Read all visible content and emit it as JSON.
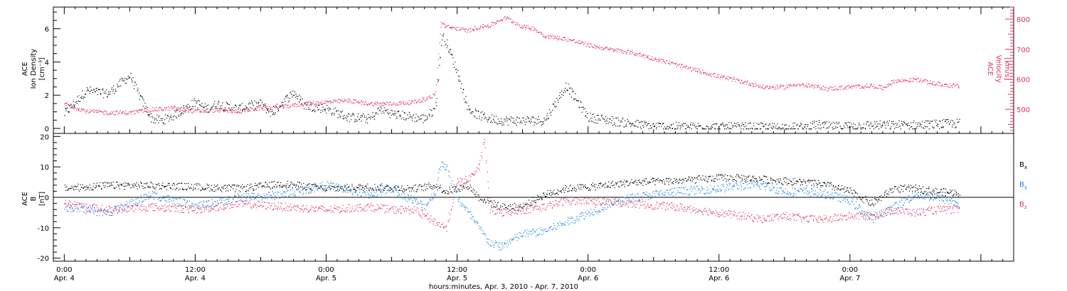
{
  "colors": {
    "density": "#000000",
    "velocity": "#e0325a",
    "bx": "#000000",
    "by": "#1a7fe0",
    "bz": "#e0325a"
  },
  "chart_data": [
    {
      "type": "scatter",
      "ylabel_lines": [
        "ACE",
        "Ion Density",
        "[cm⁻³]"
      ],
      "ylim": [
        -0.3,
        7.3
      ],
      "yticks": [
        0,
        2,
        4,
        6
      ],
      "y2label_lines": [
        "ACE",
        "Velocity",
        "[km/s]"
      ],
      "y2lim": [
        420,
        840
      ],
      "y2ticks": [
        500,
        600,
        700,
        800
      ],
      "xlim_hours": [
        -1,
        87
      ],
      "series": [
        {
          "key": "density",
          "axis": "left",
          "x_hours": [
            0,
            2,
            4,
            6,
            7,
            8,
            9,
            10,
            11,
            12,
            13,
            14,
            15,
            16,
            17,
            18,
            19,
            20,
            21,
            22,
            23,
            24,
            26,
            28,
            29,
            30,
            31,
            32,
            33,
            34,
            34.6,
            35,
            36,
            37,
            38,
            39,
            40,
            42,
            44,
            46,
            48,
            50,
            52,
            54,
            56,
            58,
            60,
            62,
            64,
            66,
            68,
            69,
            70,
            72,
            74,
            76,
            78,
            80,
            82
          ],
          "values": [
            0.9,
            2.3,
            2.1,
            3.2,
            1.8,
            0.6,
            0.5,
            0.8,
            1.2,
            1.6,
            1.2,
            1.5,
            1.3,
            1.2,
            1.4,
            1.5,
            0.9,
            1.6,
            2.2,
            1.4,
            1.3,
            1.2,
            0.7,
            0.6,
            1.2,
            0.9,
            0.8,
            0.7,
            0.6,
            1.2,
            5.6,
            5.2,
            3.4,
            1.2,
            0.8,
            0.6,
            0.5,
            0.5,
            0.5,
            2.6,
            0.7,
            0.5,
            0.3,
            0.15,
            0.12,
            0.12,
            0.1,
            0.1,
            0.08,
            0.08,
            0.08,
            0.25,
            0.12,
            0.18,
            0.22,
            0.22,
            0.22,
            0.28,
            0.32
          ]
        },
        {
          "key": "velocity",
          "axis": "right",
          "x_hours": [
            0,
            2,
            4,
            6,
            8,
            10,
            12,
            14,
            16,
            18,
            20,
            22,
            24,
            26,
            28,
            30,
            32,
            33,
            34,
            34.5,
            35,
            36,
            37,
            38,
            39,
            40,
            40.5,
            41,
            42,
            43,
            44,
            46,
            48,
            50,
            52,
            54,
            56,
            58,
            60,
            62,
            64,
            66,
            67,
            68,
            70,
            72,
            74,
            75,
            76,
            78,
            80,
            82
          ],
          "values": [
            520,
            495,
            490,
            490,
            500,
            505,
            495,
            498,
            495,
            505,
            510,
            520,
            525,
            530,
            520,
            520,
            525,
            535,
            550,
            790,
            775,
            770,
            762,
            775,
            780,
            800,
            805,
            795,
            775,
            770,
            745,
            735,
            715,
            700,
            690,
            670,
            650,
            630,
            610,
            595,
            575,
            575,
            585,
            580,
            570,
            575,
            580,
            572,
            595,
            600,
            585,
            578
          ]
        }
      ]
    },
    {
      "type": "scatter",
      "ylabel_lines": [
        "ACE",
        "B",
        "[nT]"
      ],
      "ylim": [
        -21,
        21
      ],
      "yticks": [
        -20,
        -10,
        0,
        10,
        20
      ],
      "xlim_hours": [
        -1,
        87
      ],
      "series": [
        {
          "key": "bx",
          "name": "Bx",
          "x_hours": [
            0,
            4,
            8,
            12,
            16,
            20,
            24,
            28,
            32,
            34,
            35,
            36,
            37,
            38,
            40,
            42,
            44,
            46,
            48,
            52,
            56,
            60,
            62,
            64,
            66,
            68,
            70,
            72,
            74,
            76,
            78,
            80,
            82
          ],
          "values": [
            3,
            4,
            4,
            3.5,
            3,
            4.5,
            3,
            3.5,
            3,
            4,
            2,
            3,
            4,
            0,
            -3,
            -3,
            1,
            3,
            3.5,
            5,
            5.5,
            6.5,
            6.5,
            6,
            5.5,
            5,
            4,
            2,
            -2,
            3,
            3,
            2,
            1.5
          ]
        },
        {
          "key": "by",
          "name": "By",
          "x_hours": [
            0,
            4,
            8,
            12,
            16,
            20,
            24,
            28,
            30,
            32,
            33,
            34,
            34.5,
            35,
            36,
            37,
            38,
            39,
            40,
            42,
            44,
            46,
            48,
            50,
            52,
            56,
            60,
            62,
            64,
            66,
            68,
            70,
            72,
            74,
            76,
            78,
            80,
            82
          ],
          "values": [
            -3,
            -5,
            1,
            -3,
            0,
            1,
            4,
            1,
            3,
            -1,
            -3,
            2,
            12,
            10,
            0,
            -5,
            -10,
            -15,
            -16,
            -12,
            -11,
            -8,
            -5,
            -2,
            0,
            2,
            3,
            4,
            4,
            2,
            2,
            1,
            -1,
            -7,
            -3,
            1,
            0,
            -2
          ]
        },
        {
          "key": "bz",
          "name": "Bz",
          "x_hours": [
            0,
            4,
            8,
            12,
            16,
            20,
            24,
            28,
            30,
            32,
            33,
            34,
            35,
            36,
            37,
            38,
            38.5,
            39,
            40,
            42,
            44,
            46,
            48,
            52,
            56,
            60,
            62,
            64,
            66,
            68,
            70,
            72,
            74,
            76,
            78,
            80,
            82
          ],
          "values": [
            -2,
            -4,
            -3,
            -4,
            -2,
            -3,
            -4,
            -3,
            -4,
            -4,
            -6,
            -8,
            -10,
            5,
            6,
            10,
            19,
            -4,
            -5,
            -4,
            -3,
            -1,
            -1,
            -2,
            -3,
            -5,
            -6,
            -7,
            -6,
            -7,
            -7,
            -6,
            -6,
            -4,
            -5,
            -4,
            -4
          ]
        }
      ],
      "legend": [
        "Bx",
        "By",
        "Bz"
      ]
    }
  ],
  "x_axis": {
    "ticks": [
      {
        "hours": 0,
        "time": "0:00",
        "day": "Apr. 4"
      },
      {
        "hours": 12,
        "time": "12:00",
        "day": "Apr. 4"
      },
      {
        "hours": 24,
        "time": "0:00",
        "day": "Apr. 5"
      },
      {
        "hours": 36,
        "time": "12:00",
        "day": "Apr. 5"
      },
      {
        "hours": 48,
        "time": "0:00",
        "day": "Apr. 6"
      },
      {
        "hours": 60,
        "time": "12:00",
        "day": "Apr. 6"
      },
      {
        "hours": 72,
        "time": "0:00",
        "day": "Apr. 7"
      }
    ],
    "xlabel": "hours:minutes, Apr.  3, 2010 - Apr.  7, 2010"
  }
}
